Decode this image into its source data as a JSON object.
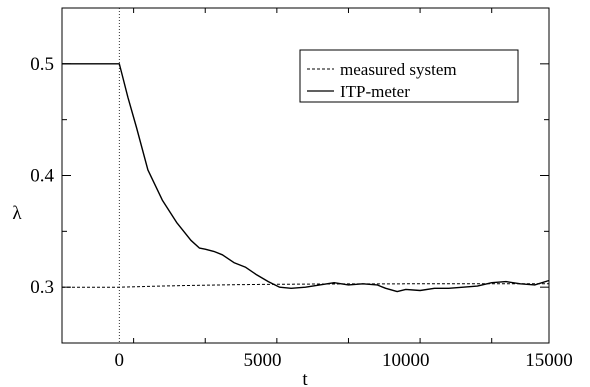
{
  "chart_data": {
    "type": "line",
    "xlabel": "t",
    "ylabel": "λ",
    "xlim": [
      -2000,
      15000
    ],
    "ylim": [
      0.25,
      0.55
    ],
    "x_ticks": [
      0,
      5000,
      10000,
      15000
    ],
    "x_tick_labels": [
      "0",
      "5000",
      "10000",
      "15000"
    ],
    "y_ticks": [
      0.3,
      0.4,
      0.5
    ],
    "y_tick_labels": [
      "0.3",
      "0.4",
      "0.5"
    ],
    "grid": false,
    "legend_position": "top-right",
    "reference_line_x": 0,
    "series": [
      {
        "name": "measured system",
        "style": "dashed",
        "color": "#000000",
        "x": [
          -2000,
          0,
          1000,
          2000,
          3000,
          4000,
          5000,
          6000,
          7000,
          8000,
          9000,
          10000,
          11000,
          12000,
          13000,
          14000,
          15000
        ],
        "y": [
          0.3,
          0.3,
          0.3007,
          0.3013,
          0.3018,
          0.3022,
          0.3025,
          0.3027,
          0.3028,
          0.3029,
          0.3029,
          0.303,
          0.303,
          0.303,
          0.303,
          0.303,
          0.303
        ]
      },
      {
        "name": "ITP-meter",
        "style": "solid",
        "color": "#000000",
        "x": [
          -2000,
          0,
          100,
          300,
          600,
          1000,
          1500,
          2000,
          2500,
          2800,
          3000,
          3300,
          3600,
          4000,
          4400,
          4800,
          5200,
          5600,
          6000,
          6500,
          7000,
          7500,
          8000,
          8500,
          9000,
          9300,
          9700,
          10000,
          10500,
          11000,
          11500,
          12000,
          12500,
          13000,
          13500,
          14000,
          14500,
          15000
        ],
        "y": [
          0.5,
          0.5,
          0.49,
          0.47,
          0.443,
          0.405,
          0.378,
          0.358,
          0.342,
          0.335,
          0.334,
          0.332,
          0.329,
          0.322,
          0.318,
          0.311,
          0.305,
          0.3,
          0.299,
          0.3,
          0.302,
          0.304,
          0.302,
          0.303,
          0.302,
          0.299,
          0.296,
          0.298,
          0.297,
          0.299,
          0.299,
          0.3,
          0.301,
          0.304,
          0.305,
          0.303,
          0.302,
          0.306
        ]
      }
    ]
  }
}
